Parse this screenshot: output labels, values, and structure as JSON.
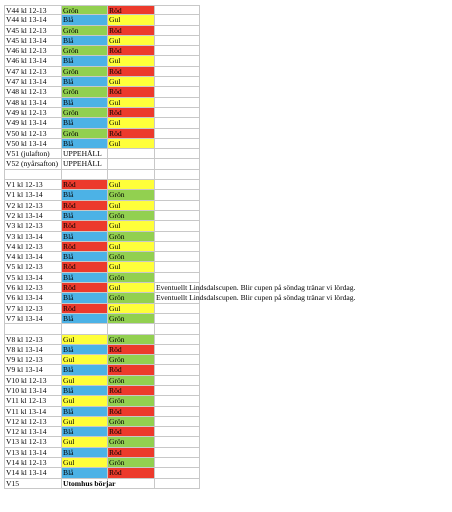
{
  "rows": [
    {
      "week": "V44 kl 12-13",
      "cells": [
        {
          "text": "Grön",
          "color": "#92d050"
        },
        {
          "text": "Röd",
          "color": "#ec3a2c"
        }
      ]
    },
    {
      "week": "V44 kl 13-14",
      "cells": [
        {
          "text": "Blå",
          "color": "#4cb2e6"
        },
        {
          "text": "Gul",
          "color": "#ffff3a"
        }
      ]
    },
    {
      "week": "V45 kl 12-13",
      "cells": [
        {
          "text": "Grön",
          "color": "#92d050"
        },
        {
          "text": "Röd",
          "color": "#ec3a2c"
        }
      ]
    },
    {
      "week": "V45 kl 13-14",
      "cells": [
        {
          "text": "Blå",
          "color": "#4cb2e6"
        },
        {
          "text": "Gul",
          "color": "#ffff3a"
        }
      ]
    },
    {
      "week": "V46 kl 12-13",
      "cells": [
        {
          "text": "Grön",
          "color": "#92d050"
        },
        {
          "text": "Röd",
          "color": "#ec3a2c"
        }
      ]
    },
    {
      "week": "V46 kl 13-14",
      "cells": [
        {
          "text": "Blå",
          "color": "#4cb2e6"
        },
        {
          "text": "Gul",
          "color": "#ffff3a"
        }
      ]
    },
    {
      "week": "V47 kl 12-13",
      "cells": [
        {
          "text": "Grön",
          "color": "#92d050"
        },
        {
          "text": "Röd",
          "color": "#ec3a2c"
        }
      ]
    },
    {
      "week": "V47 kl 13-14",
      "cells": [
        {
          "text": "Blå",
          "color": "#4cb2e6"
        },
        {
          "text": "Gul",
          "color": "#ffff3a"
        }
      ]
    },
    {
      "week": "V48 kl 12-13",
      "cells": [
        {
          "text": "Grön",
          "color": "#92d050"
        },
        {
          "text": "Röd",
          "color": "#ec3a2c"
        }
      ]
    },
    {
      "week": "V48 kl 13-14",
      "cells": [
        {
          "text": "Blå",
          "color": "#4cb2e6"
        },
        {
          "text": "Gul",
          "color": "#ffff3a"
        }
      ]
    },
    {
      "week": "V49 kl 12-13",
      "cells": [
        {
          "text": "Grön",
          "color": "#92d050"
        },
        {
          "text": "Röd",
          "color": "#ec3a2c"
        }
      ]
    },
    {
      "week": "V49 kl 13-14",
      "cells": [
        {
          "text": "Blå",
          "color": "#4cb2e6"
        },
        {
          "text": "Gul",
          "color": "#ffff3a"
        }
      ]
    },
    {
      "week": "V50 kl 12-13",
      "cells": [
        {
          "text": "Grön",
          "color": "#92d050"
        },
        {
          "text": "Röd",
          "color": "#ec3a2c"
        }
      ]
    },
    {
      "week": "V50 kl 13-14",
      "cells": [
        {
          "text": "Blå",
          "color": "#4cb2e6"
        },
        {
          "text": "Gul",
          "color": "#ffff3a"
        }
      ]
    },
    {
      "week": "V51 (julafton)",
      "cells": [
        {
          "text": "UPPEHÅLL"
        }
      ]
    },
    {
      "week": "V52 (nyårsafton)",
      "cells": [
        {
          "text": "UPPEHÅLL"
        }
      ]
    },
    {},
    {
      "week": "V1 kl 12-13",
      "cells": [
        {
          "text": "Röd",
          "color": "#ec3a2c"
        },
        {
          "text": "Gul",
          "color": "#ffff3a"
        }
      ]
    },
    {
      "week": "V1 kl 13-14",
      "cells": [
        {
          "text": "Blå",
          "color": "#4cb2e6"
        },
        {
          "text": "Grön",
          "color": "#92d050"
        }
      ]
    },
    {
      "week": "V2 kl 12-13",
      "cells": [
        {
          "text": "Röd",
          "color": "#ec3a2c"
        },
        {
          "text": "Gul",
          "color": "#ffff3a"
        }
      ]
    },
    {
      "week": "V2 kl 13-14",
      "cells": [
        {
          "text": "Blå",
          "color": "#4cb2e6"
        },
        {
          "text": "Grön",
          "color": "#92d050"
        }
      ]
    },
    {
      "week": "V3 kl 12-13",
      "cells": [
        {
          "text": "Röd",
          "color": "#ec3a2c"
        },
        {
          "text": "Gul",
          "color": "#ffff3a"
        }
      ]
    },
    {
      "week": "V3 kl 13-14",
      "cells": [
        {
          "text": "Blå",
          "color": "#4cb2e6"
        },
        {
          "text": "Grön",
          "color": "#92d050"
        }
      ]
    },
    {
      "week": "V4 kl 12-13",
      "cells": [
        {
          "text": "Röd",
          "color": "#ec3a2c"
        },
        {
          "text": "Gul",
          "color": "#ffff3a"
        }
      ]
    },
    {
      "week": "V4 kl 13-14",
      "cells": [
        {
          "text": "Blå",
          "color": "#4cb2e6"
        },
        {
          "text": "Grön",
          "color": "#92d050"
        }
      ]
    },
    {
      "week": "V5 kl 12-13",
      "cells": [
        {
          "text": "Röd",
          "color": "#ec3a2c"
        },
        {
          "text": "Gul",
          "color": "#ffff3a"
        }
      ]
    },
    {
      "week": "V5 kl 13-14",
      "cells": [
        {
          "text": "Blå",
          "color": "#4cb2e6"
        },
        {
          "text": "Grön",
          "color": "#92d050"
        }
      ]
    },
    {
      "week": "V6 kl 12-13",
      "cells": [
        {
          "text": "Röd",
          "color": "#ec3a2c"
        },
        {
          "text": "Gul",
          "color": "#ffff3a"
        }
      ],
      "note": "Eventuellt Lindsdalscupen. Blir cupen på söndag tränar vi lördag."
    },
    {
      "week": "V6 kl 13-14",
      "cells": [
        {
          "text": "Blå",
          "color": "#4cb2e6"
        },
        {
          "text": "Grön",
          "color": "#92d050"
        }
      ],
      "note": "Eventuellt Lindsdalscupen. Blir cupen på söndag tränar vi lördag."
    },
    {
      "week": "V7 kl 12-13",
      "cells": [
        {
          "text": "Röd",
          "color": "#ec3a2c"
        },
        {
          "text": "Gul",
          "color": "#ffff3a"
        }
      ]
    },
    {
      "week": "V7 kl 13-14",
      "cells": [
        {
          "text": "Blå",
          "color": "#4cb2e6"
        },
        {
          "text": "Grön",
          "color": "#92d050"
        }
      ]
    },
    {},
    {
      "week": "V8 kl 12-13",
      "cells": [
        {
          "text": "Gul",
          "color": "#ffff3a"
        },
        {
          "text": "Grön",
          "color": "#92d050"
        }
      ]
    },
    {
      "week": "V8 kl 13-14",
      "cells": [
        {
          "text": "Blå",
          "color": "#4cb2e6"
        },
        {
          "text": "Röd",
          "color": "#ec3a2c"
        }
      ]
    },
    {
      "week": "V9 kl 12-13",
      "cells": [
        {
          "text": "Gul",
          "color": "#ffff3a"
        },
        {
          "text": "Grön",
          "color": "#92d050"
        }
      ]
    },
    {
      "week": "V9 kl 13-14",
      "cells": [
        {
          "text": "Blå",
          "color": "#4cb2e6"
        },
        {
          "text": "Röd",
          "color": "#ec3a2c"
        }
      ]
    },
    {
      "week": "V10 kl 12-13",
      "cells": [
        {
          "text": "Gul",
          "color": "#ffff3a"
        },
        {
          "text": "Grön",
          "color": "#92d050"
        }
      ]
    },
    {
      "week": "V10 kl 13-14",
      "cells": [
        {
          "text": "Blå",
          "color": "#4cb2e6"
        },
        {
          "text": "Röd",
          "color": "#ec3a2c"
        }
      ]
    },
    {
      "week": "V11 kl 12-13",
      "cells": [
        {
          "text": "Gul",
          "color": "#ffff3a"
        },
        {
          "text": "Grön",
          "color": "#92d050"
        }
      ]
    },
    {
      "week": "V11 kl 13-14",
      "cells": [
        {
          "text": "Blå",
          "color": "#4cb2e6"
        },
        {
          "text": "Röd",
          "color": "#ec3a2c"
        }
      ]
    },
    {
      "week": "V12 kl 12-13",
      "cells": [
        {
          "text": "Gul",
          "color": "#ffff3a"
        },
        {
          "text": "Grön",
          "color": "#92d050"
        }
      ]
    },
    {
      "week": "V12 kl 13-14",
      "cells": [
        {
          "text": "Blå",
          "color": "#4cb2e6"
        },
        {
          "text": "Röd",
          "color": "#ec3a2c"
        }
      ]
    },
    {
      "week": "V13 kl 12-13",
      "cells": [
        {
          "text": "Gul",
          "color": "#ffff3a"
        },
        {
          "text": "Grön",
          "color": "#92d050"
        }
      ]
    },
    {
      "week": "V13 kl 13-14",
      "cells": [
        {
          "text": "Blå",
          "color": "#4cb2e6"
        },
        {
          "text": "Röd",
          "color": "#ec3a2c"
        }
      ]
    },
    {
      "week": "V14 kl 12-13",
      "cells": [
        {
          "text": "Gul",
          "color": "#ffff3a"
        },
        {
          "text": "Grön",
          "color": "#92d050"
        }
      ]
    },
    {
      "week": "V14 kl 13-14",
      "cells": [
        {
          "text": "Blå",
          "color": "#4cb2e6"
        },
        {
          "text": "Röd",
          "color": "#ec3a2c"
        }
      ]
    },
    {
      "week": "V15",
      "cells": [
        {
          "text": "Utomhus börjar",
          "bold": true
        }
      ]
    }
  ]
}
